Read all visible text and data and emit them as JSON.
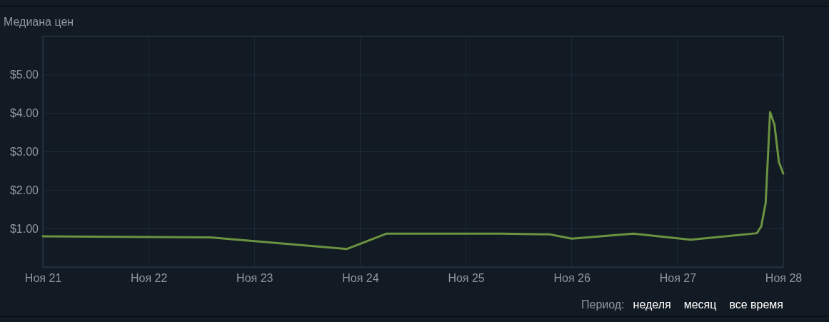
{
  "chart_data": {
    "type": "line",
    "title": "Медиана цен",
    "x": [
      "--11-21T00:00",
      "--11-22T14:00",
      "--11-23T21:00",
      "--11-24T06:00",
      "--11-25T08:00",
      "--11-25T19:00",
      "--11-26T00:00",
      "--11-26T14:00",
      "--11-27T03:00",
      "--11-27T18:00",
      "--11-27T19:00",
      "--11-27T20:00",
      "--11-27T21:00",
      "--11-27T22:00",
      "--11-27T23:00",
      "--11-28T00:00"
    ],
    "series": [
      {
        "color": "#6b9340",
        "values": [
          0.8,
          0.77,
          0.47,
          0.87,
          0.87,
          0.85,
          0.74,
          0.87,
          0.71,
          0.88,
          1.06,
          1.67,
          4.03,
          3.7,
          2.73,
          2.43
        ]
      }
    ],
    "xlim": [
      "--11-21",
      "--11-28"
    ],
    "xticks": [
      {
        "value": "--11-21",
        "label": "Ноя 21"
      },
      {
        "value": "--11-22",
        "label": "Ноя 22"
      },
      {
        "value": "--11-23",
        "label": "Ноя 23"
      },
      {
        "value": "--11-24",
        "label": "Ноя 24"
      },
      {
        "value": "--11-25",
        "label": "Ноя 25"
      },
      {
        "value": "--11-26",
        "label": "Ноя 26"
      },
      {
        "value": "--11-27",
        "label": "Ноя 27"
      },
      {
        "value": "--11-28",
        "label": "Ноя 28"
      }
    ],
    "ylim": [
      0,
      6
    ],
    "yticks": [
      {
        "value": 1,
        "label": "$1.00"
      },
      {
        "value": 2,
        "label": "$2.00"
      },
      {
        "value": 3,
        "label": "$3.00"
      },
      {
        "value": 4,
        "label": "$4.00"
      },
      {
        "value": 5,
        "label": "$5.00"
      }
    ],
    "grid": true,
    "marker": "none",
    "line_style": "solid",
    "annotations": [
      "Период:",
      "неделя",
      "месяц",
      "все время"
    ]
  }
}
